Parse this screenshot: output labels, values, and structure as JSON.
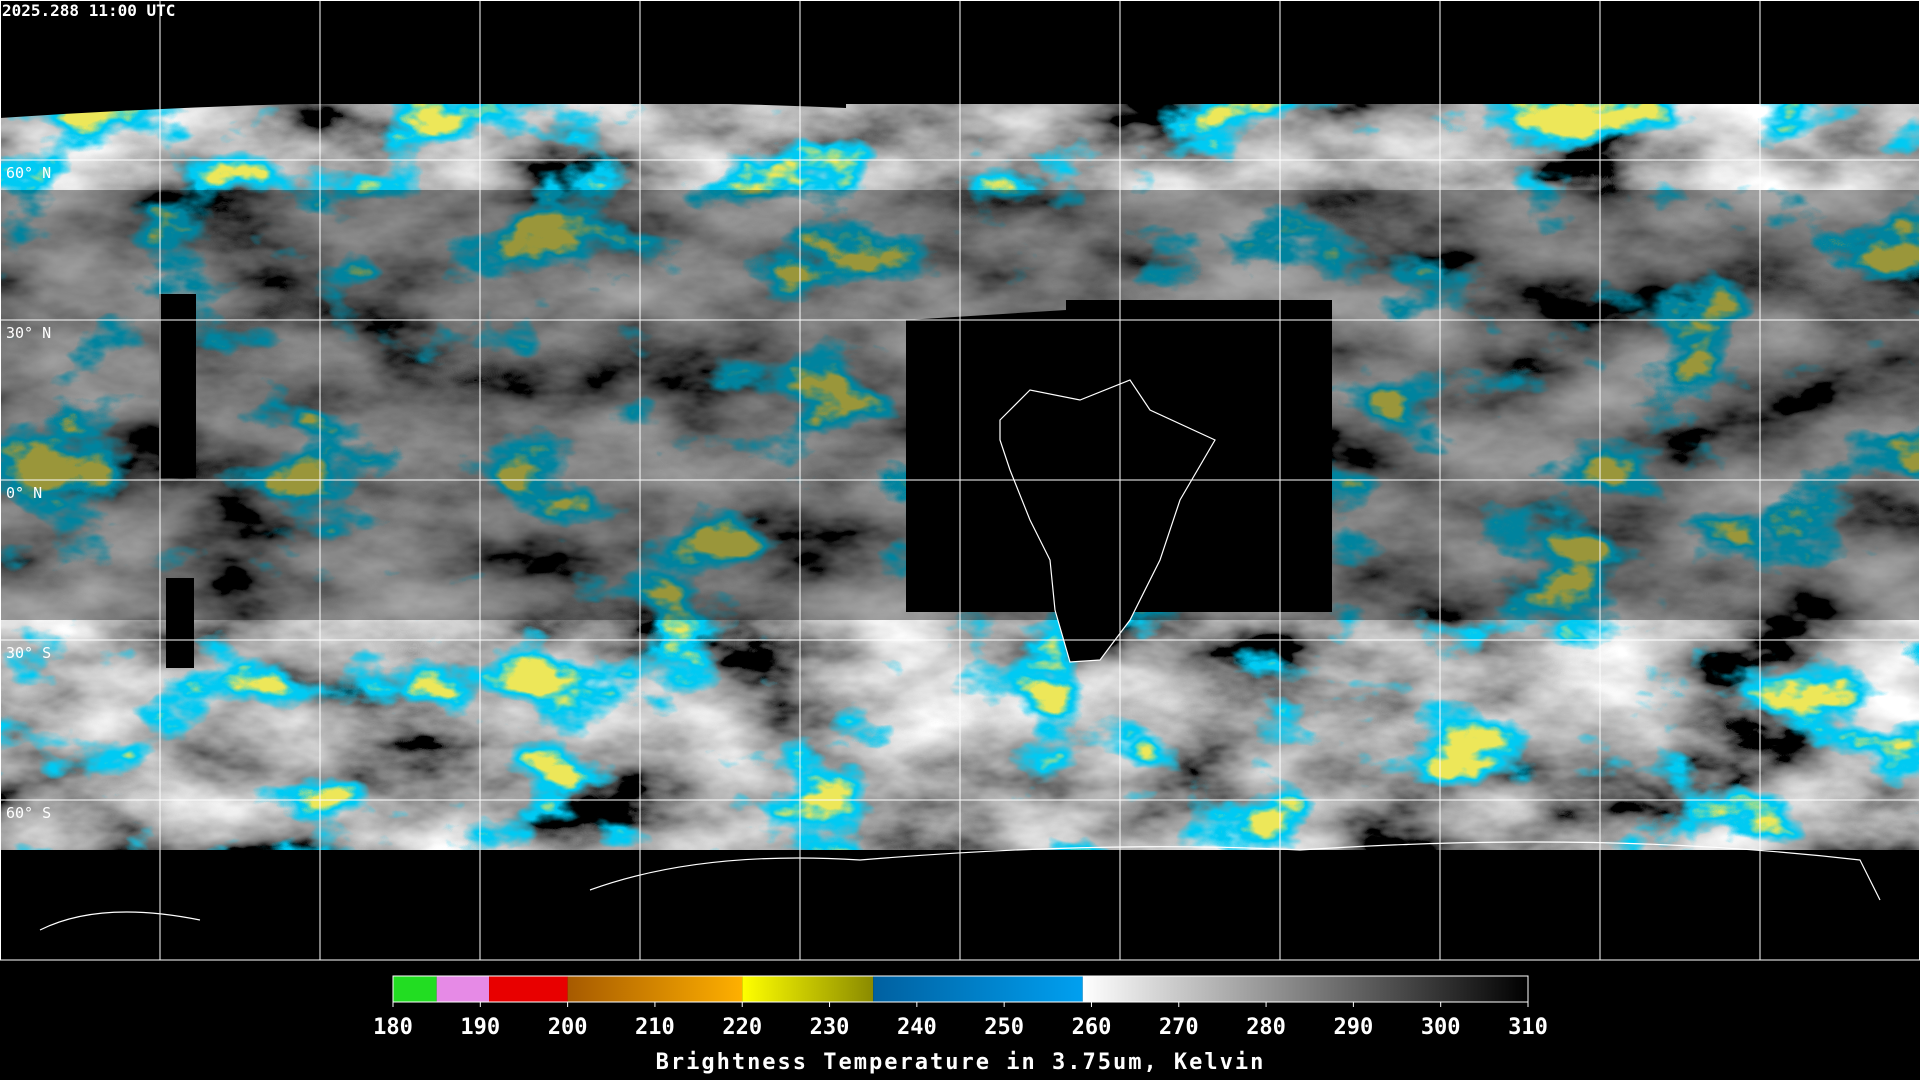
{
  "header": {
    "timestamp": "2025.288 11:00 UTC"
  },
  "map": {
    "lat_labels": [
      "60° N",
      "30° N",
      "0° N",
      "30° S",
      "60° S"
    ]
  },
  "colorbar": {
    "lim": [
      180,
      310
    ],
    "ticks": [
      180,
      190,
      200,
      210,
      220,
      230,
      240,
      250,
      260,
      270,
      280,
      290,
      300,
      310
    ],
    "label": "Brightness Temperature in 3.75um, Kelvin",
    "segments": [
      {
        "from": 180,
        "to": 185,
        "colors": [
          "#22dd22",
          "#22dd22"
        ]
      },
      {
        "from": 185,
        "to": 191,
        "colors": [
          "#e68ae6",
          "#e68ae6"
        ]
      },
      {
        "from": 191,
        "to": 200,
        "colors": [
          "#e80000",
          "#e80000"
        ]
      },
      {
        "from": 200,
        "to": 220,
        "colors": [
          "#a65a00",
          "#ffb000"
        ]
      },
      {
        "from": 220,
        "to": 235,
        "colors": [
          "#ffff00",
          "#8a8a00"
        ]
      },
      {
        "from": 235,
        "to": 259,
        "colors": [
          "#0060a0",
          "#00a0f0"
        ]
      },
      {
        "from": 259,
        "to": 310,
        "colors": [
          "#ffffff",
          "#000000"
        ]
      }
    ]
  }
}
